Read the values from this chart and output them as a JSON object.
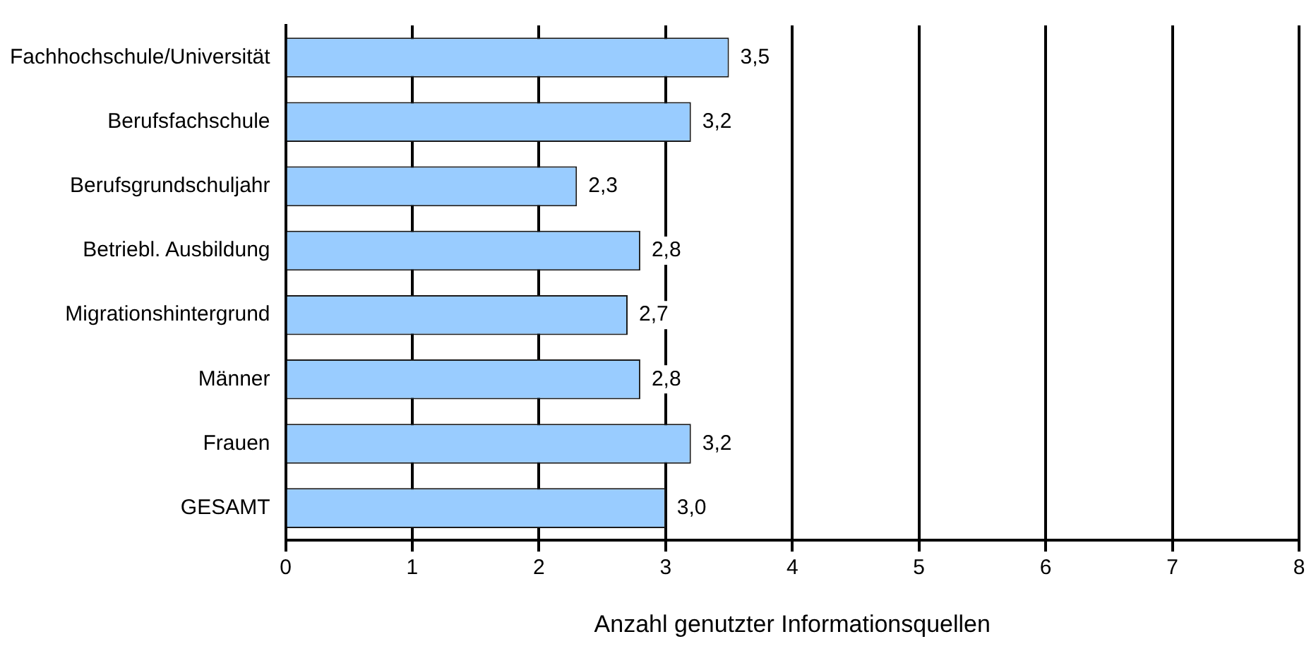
{
  "chart_data": {
    "type": "bar",
    "orientation": "horizontal",
    "xlabel": "Anzahl genutzter Informationsquellen",
    "categories": [
      "Fachhochschule/Universität",
      "Berufsfachschule",
      "Berufsgrundschuljahr",
      "Betriebl. Ausbildung",
      "Migrationshintergrund",
      "Männer",
      "Frauen",
      "GESAMT"
    ],
    "values": [
      3.5,
      3.2,
      2.3,
      2.8,
      2.7,
      2.8,
      3.2,
      3.0
    ],
    "value_labels": [
      "3,5",
      "3,2",
      "2,3",
      "2,8",
      "2,7",
      "2,8",
      "3,2",
      "3,0"
    ],
    "color": "#99ccff",
    "xlim": [
      0,
      8
    ],
    "xticks": [
      0,
      1,
      2,
      3,
      4,
      5,
      6,
      7,
      8
    ],
    "grid": "x",
    "legend": false
  }
}
